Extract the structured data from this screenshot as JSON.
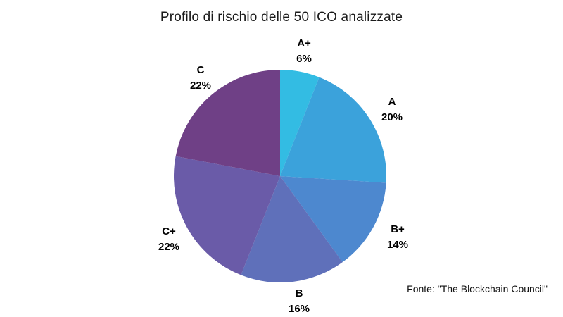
{
  "chart_data": {
    "type": "pie",
    "title": "Profilo di rischio delle 50 ICO analizzate",
    "source_note": "Fonte: \"The Blockchain Council\"",
    "categories": [
      "A+",
      "A",
      "B+",
      "B",
      "C+",
      "C"
    ],
    "values": [
      6,
      20,
      14,
      16,
      22,
      22
    ],
    "slices": [
      {
        "label": "A+",
        "value": 6,
        "percent_label": "6%",
        "color": "#33bce3"
      },
      {
        "label": "A",
        "value": 20,
        "percent_label": "20%",
        "color": "#3ba2db"
      },
      {
        "label": "B+",
        "value": 14,
        "percent_label": "14%",
        "color": "#4d88cf"
      },
      {
        "label": "B",
        "value": 16,
        "percent_label": "16%",
        "color": "#5f70ba"
      },
      {
        "label": "C+",
        "value": 22,
        "percent_label": "22%",
        "color": "#6a5ba8"
      },
      {
        "label": "C",
        "value": 22,
        "percent_label": "22%",
        "color": "#6f4086"
      }
    ],
    "legend": "none",
    "labels_position": "outside",
    "start_angle_deg": 0,
    "direction": "clockwise"
  }
}
